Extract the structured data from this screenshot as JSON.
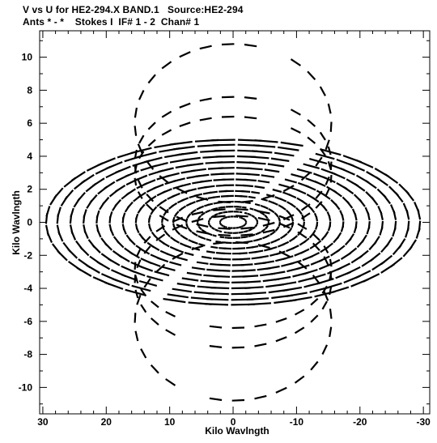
{
  "header": {
    "line1": "V vs U for HE2-294.X BAND.1   Source:HE2-294",
    "line2": "Ants * - *    Stokes I  IF# 1 - 2  Chan# 1"
  },
  "chart_data": {
    "type": "scatter",
    "title": "V vs U for HE2-294.X BAND.1   Source:HE2-294",
    "subtitle": "Ants * - *    Stokes I  IF# 1 - 2  Chan# 1",
    "xlabel": "Kilo Wavlngth",
    "ylabel": "Kilo Wavlngth",
    "xlim": [
      30.5,
      -31
    ],
    "ylim": [
      -11.6,
      11.6
    ],
    "x_ticks": [
      30,
      20,
      10,
      0,
      -10,
      -20,
      -30
    ],
    "x_tick_labels": [
      "30",
      "20",
      "10",
      "0",
      "-10",
      "-20",
      "-30"
    ],
    "y_ticks": [
      10,
      8,
      6,
      4,
      2,
      0,
      -2,
      -4,
      -6,
      -8,
      -10
    ],
    "y_tick_labels": [
      "10",
      "8",
      "6",
      "4",
      "2",
      "0",
      "-2",
      "-4",
      "-6",
      "-8",
      "-10"
    ],
    "grid": false,
    "marker_color": "#000000",
    "x_track_scales": [
      0.07,
      0.13,
      0.19,
      0.25,
      0.32,
      0.38,
      0.45,
      0.52,
      0.59,
      0.66,
      0.73,
      0.8,
      0.87,
      0.94,
      1.0
    ],
    "series": [
      {
        "h_start": 2.2,
        "h_end": 8.2,
        "u_amp": 15.5,
        "v_amp": 4.8,
        "v_offset": 6.0
      },
      {
        "h_start": 2.2,
        "h_end": 8.2,
        "u_amp": 15.5,
        "v_amp": 4.0,
        "v_offset": 3.6
      },
      {
        "h_start": 2.2,
        "h_end": 8.2,
        "u_amp": 15.5,
        "v_amp": 3.6,
        "v_offset": 2.8
      },
      {
        "h_start": 2.2,
        "h_end": 8.2,
        "u_amp": 29.5,
        "v_amp": 5.0,
        "v_offset": 0.0
      }
    ]
  }
}
